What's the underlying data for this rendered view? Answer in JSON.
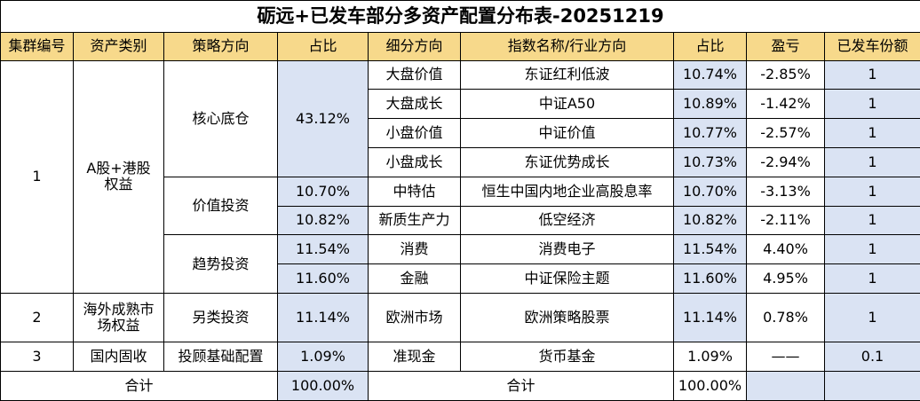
{
  "title": "砺远+已发车部分多资产配置分布表-20251219",
  "headers": [
    "集群编号",
    "资产类别",
    "策略方向",
    "占比",
    "细分方向",
    "指数名称/行业方向",
    "占比",
    "盈亏",
    "已发车份额"
  ],
  "groups": {
    "g1": {
      "id": "1",
      "asset_class": "A股+港股权益"
    },
    "g2": {
      "id": "2",
      "asset_class": "海外成熟市场权益"
    },
    "g3": {
      "id": "3",
      "asset_class": "国内固收"
    }
  },
  "strategies": {
    "core": {
      "name": "核心底仓",
      "share": "43.12%"
    },
    "value": {
      "name": "价值投资"
    },
    "trend": {
      "name": "趋势投资"
    },
    "alt": {
      "name": "另类投资",
      "share": "11.14%"
    },
    "base": {
      "name": "投顾基础配置",
      "share": "1.09%"
    }
  },
  "rows": [
    {
      "sub": "大盘价值",
      "index": "东证红利低波",
      "share": "10.74%",
      "pnl": "-2.85%",
      "units": "1"
    },
    {
      "sub": "大盘成长",
      "index": "中证A50",
      "share": "10.89%",
      "pnl": "-1.42%",
      "units": "1"
    },
    {
      "sub": "小盘价值",
      "index": "中证价值",
      "share": "10.77%",
      "pnl": "-2.57%",
      "units": "1"
    },
    {
      "sub": "小盘成长",
      "index": "东证优势成长",
      "share": "10.73%",
      "pnl": "-2.94%",
      "units": "1"
    },
    {
      "strat_share": "10.70%",
      "sub": "中特估",
      "index": "恒生中国内地企业高股息率",
      "share": "10.70%",
      "pnl": "-3.13%",
      "units": "1"
    },
    {
      "strat_share": "10.82%",
      "sub": "新质生产力",
      "index": "低空经济",
      "share": "10.82%",
      "pnl": "-2.11%",
      "units": "1"
    },
    {
      "strat_share": "11.54%",
      "sub": "消费",
      "index": "消费电子",
      "share": "11.54%",
      "pnl": "4.40%",
      "units": "1"
    },
    {
      "strat_share": "11.60%",
      "sub": "金融",
      "index": "中证保险主题",
      "share": "11.60%",
      "pnl": "4.95%",
      "units": "1"
    },
    {
      "sub": "欧洲市场",
      "index": "欧洲策略股票",
      "share": "11.14%",
      "pnl": "0.78%",
      "units": "1"
    },
    {
      "sub": "准现金",
      "index": "货币基金",
      "share": "1.09%",
      "pnl": "——",
      "units": "0.1"
    }
  ],
  "total": {
    "label": "合计",
    "share1": "100.00%",
    "label2": "合计",
    "share2": "100.00%"
  }
}
